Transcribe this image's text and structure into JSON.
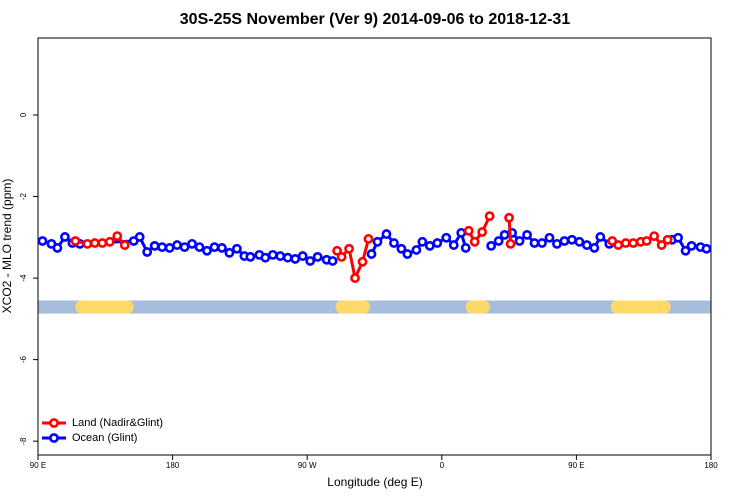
{
  "chart_data": {
    "type": "line",
    "title": "30S-25S November (Ver 9)   2014-09-06 to 2018-12-31",
    "xlabel": "Longitude (deg E)",
    "ylabel": "XCO2 - MLO trend (ppm)",
    "xlim": [
      90,
      540
    ],
    "xticks": [
      {
        "value": 90,
        "label": "90 E"
      },
      180,
      {
        "value": 270,
        "label": "90 W"
      },
      {
        "value": 360,
        "label": "0"
      },
      {
        "value": 450,
        "label": "90 E"
      },
      {
        "value": 540,
        "label": "180"
      }
    ],
    "ylim": [
      -8.34,
      1.89
    ],
    "yticks": [
      0,
      -2,
      -4,
      -6,
      -8
    ],
    "legend": "bottom left",
    "band": {
      "y": [
        -4.55,
        -4.87
      ],
      "color": "#a6bddb",
      "land_color": "#fdd96a",
      "land": [
        [
          115,
          154
        ],
        [
          289,
          312
        ],
        [
          376,
          392
        ],
        [
          473,
          513
        ]
      ]
    },
    "series": [
      {
        "name": "Ocean (Glint)",
        "color": "#0000ff",
        "x": [
          93,
          99,
          103,
          108,
          113,
          118,
          154,
          158,
          163,
          168,
          173,
          178,
          183,
          188,
          193,
          198,
          203,
          208,
          213,
          218,
          223,
          228,
          232,
          238,
          242,
          247,
          252,
          257,
          262,
          267,
          272,
          277,
          283,
          287,
          null,
          313,
          317,
          323,
          328,
          333,
          337,
          343,
          347,
          352,
          357,
          363,
          368,
          373,
          376,
          null,
          393,
          398,
          402,
          407,
          412,
          417,
          422,
          427,
          432,
          437,
          442,
          447,
          452,
          457,
          462,
          466,
          472,
          null,
          514,
          518,
          523,
          527,
          533,
          537
        ],
        "values": [
          -3.09,
          -3.16,
          -3.26,
          -2.99,
          -3.14,
          -3.16,
          -3.09,
          -2.99,
          -3.36,
          -3.21,
          -3.24,
          -3.26,
          -3.19,
          -3.24,
          -3.16,
          -3.24,
          -3.33,
          -3.24,
          -3.26,
          -3.38,
          -3.28,
          -3.46,
          -3.48,
          -3.43,
          -3.5,
          -3.43,
          -3.46,
          -3.5,
          -3.53,
          -3.46,
          -3.58,
          -3.48,
          -3.55,
          -3.58,
          null,
          -3.41,
          -3.11,
          -2.92,
          -3.14,
          -3.28,
          -3.41,
          -3.31,
          -3.11,
          -3.21,
          -3.14,
          -3.01,
          -3.19,
          -2.89,
          -3.26,
          null,
          -3.21,
          -3.09,
          -2.94,
          -2.89,
          -3.09,
          -2.94,
          -3.14,
          -3.14,
          -3.01,
          -3.16,
          -3.09,
          -3.06,
          -3.11,
          -3.19,
          -3.26,
          -2.99,
          -3.16,
          null,
          -3.06,
          -3.01,
          -3.33,
          -3.21,
          -3.24,
          -3.28
        ]
      },
      {
        "name": "Land (Nadir&Glint)",
        "color": "#ff0000",
        "x": [
          115,
          123,
          128,
          133,
          138,
          143,
          148,
          null,
          290,
          293,
          298,
          302,
          307,
          311,
          null,
          378,
          382,
          387,
          392,
          null,
          405,
          406,
          null,
          474,
          478,
          483,
          488,
          493,
          497,
          502,
          507,
          511
        ],
        "values": [
          -3.09,
          -3.16,
          -3.14,
          -3.14,
          -3.11,
          -2.97,
          -3.19,
          null,
          -3.33,
          -3.48,
          -3.28,
          -4.0,
          -3.6,
          -3.04,
          null,
          -2.84,
          -3.11,
          -2.87,
          -2.48,
          null,
          -2.52,
          -3.16,
          null,
          -3.09,
          -3.19,
          -3.14,
          -3.14,
          -3.11,
          -3.09,
          -2.97,
          -3.19,
          -3.06
        ]
      }
    ]
  }
}
